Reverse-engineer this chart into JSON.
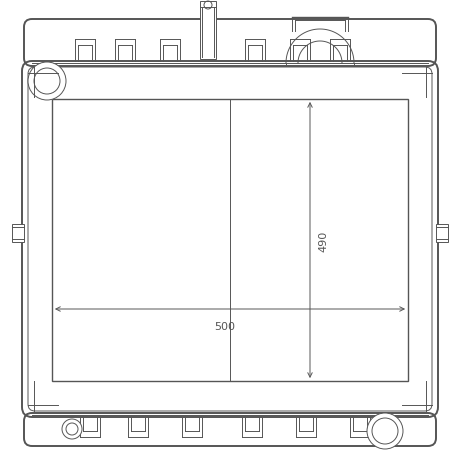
{
  "bg_color": "#f0f0f0",
  "inner_bg": "#ffffff",
  "line_color": "#555555",
  "dim_color": "#555555",
  "fig_size": [
    4.6,
    4.6
  ],
  "dpi": 100,
  "dim_500_label": "500",
  "dim_490_label": "490"
}
